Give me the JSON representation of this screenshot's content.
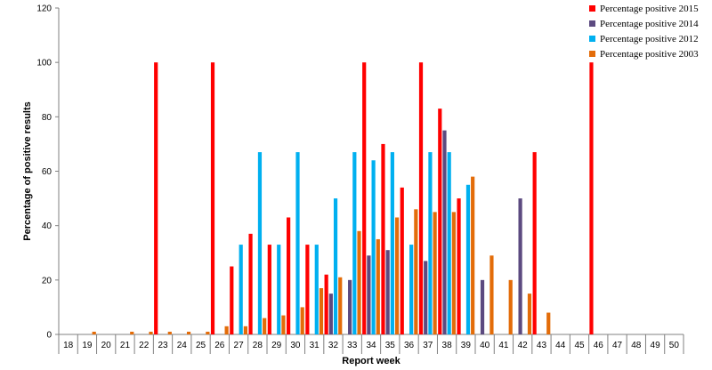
{
  "chart_data": {
    "type": "bar",
    "title": "",
    "xlabel": "Report week",
    "ylabel": "Percentage of positive results",
    "ylim": [
      0,
      120
    ],
    "yticks": [
      0,
      20,
      40,
      60,
      80,
      100,
      120
    ],
    "grid": false,
    "legend_position": "top-right",
    "categories": [
      "18",
      "19",
      "20",
      "21",
      "22",
      "23",
      "24",
      "25",
      "26",
      "27",
      "28",
      "29",
      "30",
      "31",
      "32",
      "33",
      "34",
      "35",
      "36",
      "37",
      "38",
      "39",
      "40",
      "41",
      "42",
      "43",
      "44",
      "45",
      "46",
      "47",
      "48",
      "49",
      "50"
    ],
    "series": [
      {
        "name": "Percentage positive 2015",
        "color": "#ff0000",
        "values": [
          null,
          null,
          null,
          null,
          null,
          100,
          null,
          null,
          100,
          25,
          37,
          33,
          43,
          33,
          22,
          null,
          100,
          70,
          54,
          100,
          83,
          50,
          null,
          null,
          null,
          67,
          null,
          null,
          100,
          null,
          null,
          null,
          null
        ]
      },
      {
        "name": "Percentage positive 2014",
        "color": "#5c4a80",
        "values": [
          null,
          null,
          null,
          null,
          null,
          null,
          null,
          null,
          null,
          null,
          null,
          null,
          null,
          null,
          15,
          20,
          29,
          31,
          null,
          27,
          75,
          null,
          20,
          null,
          50,
          null,
          null,
          null,
          null,
          null,
          null,
          null,
          null
        ]
      },
      {
        "name": "Percentage positive 2012",
        "color": "#00b0f0",
        "values": [
          null,
          null,
          null,
          null,
          null,
          null,
          null,
          null,
          null,
          33,
          67,
          33,
          67,
          33,
          50,
          67,
          64,
          67,
          33,
          67,
          67,
          55,
          null,
          null,
          null,
          null,
          null,
          null,
          null,
          null,
          null,
          null,
          null
        ]
      },
      {
        "name": "Percentage positive 2003",
        "color": "#e36c09",
        "values": [
          null,
          1,
          null,
          1,
          1,
          1,
          1,
          1,
          3,
          3,
          6,
          7,
          10,
          17,
          21,
          38,
          35,
          43,
          46,
          45,
          45,
          58,
          29,
          20,
          15,
          8,
          null,
          null,
          null,
          null,
          null,
          null,
          null
        ]
      }
    ]
  }
}
